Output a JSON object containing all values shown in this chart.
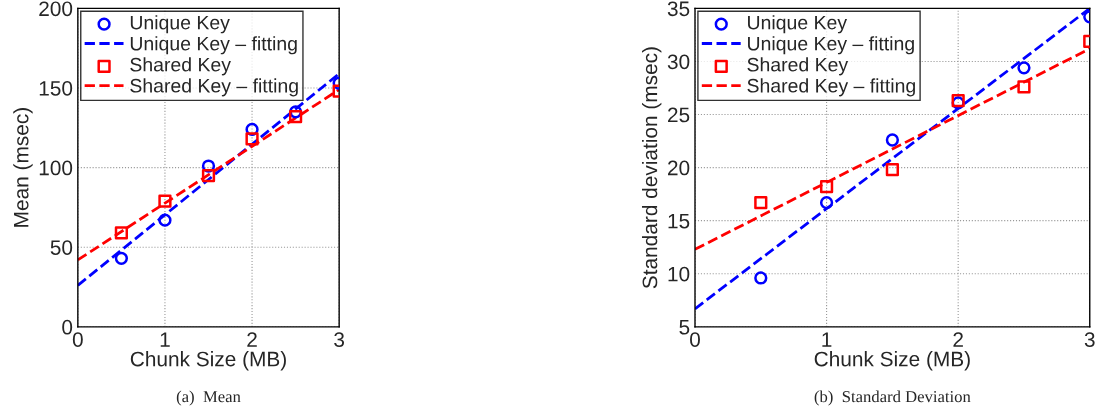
{
  "chart_data": [
    {
      "type": "scatter",
      "xlabel": "Chunk Size (MB)",
      "ylabel": "Mean (msec)",
      "xlim": [
        0,
        3
      ],
      "ylim": [
        0,
        200
      ],
      "xticks": [
        0,
        1,
        2,
        3
      ],
      "yticks": [
        0,
        50,
        100,
        150,
        200
      ],
      "grid": true,
      "legend": "top left",
      "annotations": [
        "(a)  Mean"
      ],
      "series": [
        {
          "name": "Unique Key",
          "marker": "circle",
          "color": "#0000ff",
          "x": [
            0.5,
            1,
            1.5,
            2,
            2.5,
            3
          ],
          "values": [
            43,
            67,
            101,
            124,
            135,
            153
          ]
        },
        {
          "name": "Unique Key – fitting",
          "type": "line",
          "line_style": "dashed",
          "marker": "none",
          "color": "#0000ff",
          "x": [
            0,
            3
          ],
          "values": [
            26,
            159
          ]
        },
        {
          "name": "Shared Key",
          "marker": "square",
          "color": "#ff0000",
          "x": [
            0.5,
            1,
            1.5,
            2,
            2.5,
            3
          ],
          "values": [
            59,
            79,
            95,
            118,
            132,
            148
          ]
        },
        {
          "name": "Shared Key – fitting",
          "type": "line",
          "line_style": "dashed",
          "marker": "none",
          "color": "#ff0000",
          "x": [
            0,
            3
          ],
          "values": [
            42,
            149
          ]
        }
      ]
    },
    {
      "type": "scatter",
      "xlabel": "Chunk Size (MB)",
      "ylabel": "Standard deviation (msec)",
      "xlim": [
        0,
        3
      ],
      "ylim": [
        5,
        35
      ],
      "xticks": [
        0,
        1,
        2,
        3
      ],
      "yticks": [
        5,
        10,
        15,
        20,
        25,
        30,
        35
      ],
      "grid": true,
      "legend": "top left",
      "annotations": [
        "(b)  Standard Deviation"
      ],
      "series": [
        {
          "name": "Unique Key",
          "marker": "circle",
          "color": "#0000ff",
          "x": [
            0.5,
            1,
            1.5,
            2,
            2.5,
            3
          ],
          "values": [
            9.6,
            16.7,
            22.6,
            26.1,
            29.4,
            34.2
          ]
        },
        {
          "name": "Unique Key – fitting",
          "type": "line",
          "line_style": "dashed",
          "marker": "none",
          "color": "#0000ff",
          "x": [
            0,
            3
          ],
          "values": [
            6.7,
            35
          ]
        },
        {
          "name": "Shared Key",
          "marker": "square",
          "color": "#ff0000",
          "x": [
            0.5,
            1,
            1.5,
            2,
            2.5,
            3
          ],
          "values": [
            16.7,
            18.2,
            19.8,
            26.3,
            27.6,
            31.9
          ]
        },
        {
          "name": "Shared Key – fitting",
          "type": "line",
          "line_style": "dashed",
          "marker": "none",
          "color": "#ff0000",
          "x": [
            0,
            3
          ],
          "values": [
            12.3,
            31.2
          ]
        }
      ]
    }
  ]
}
